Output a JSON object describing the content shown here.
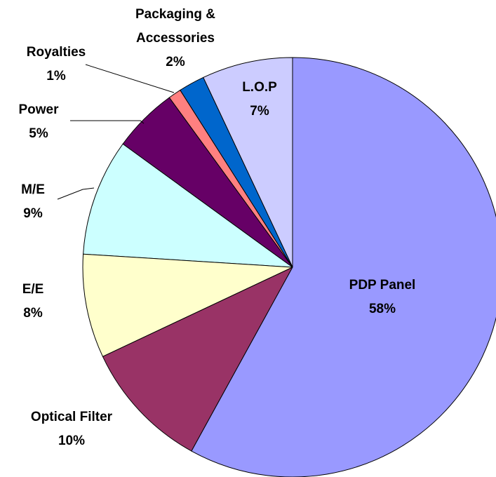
{
  "chart_data": {
    "type": "pie",
    "categories": [
      "PDP Panel",
      "Optical Filter",
      "E/E",
      "M/E",
      "Power",
      "Royalties",
      "Packaging & Accessories",
      "L.O.P"
    ],
    "values": [
      58,
      10,
      8,
      9,
      5,
      1,
      2,
      7
    ],
    "value_labels": [
      "58%",
      "10%",
      "8%",
      "9%",
      "5%",
      "1%",
      "2%",
      "7%"
    ],
    "colors": [
      "#9999ff",
      "#993366",
      "#ffffcc",
      "#ccffff",
      "#660066",
      "#ff8080",
      "#0066cc",
      "#ccccff"
    ]
  }
}
